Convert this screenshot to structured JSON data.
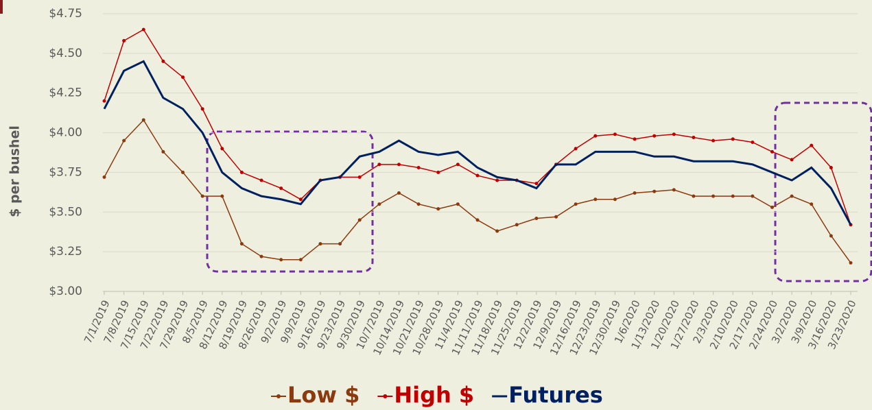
{
  "chart_data": {
    "type": "line",
    "y_label": "$ per bushel",
    "categories": [
      "7/1/2019",
      "7/8/2019",
      "7/15/2019",
      "7/22/2019",
      "7/29/2019",
      "8/5/2019",
      "8/12/2019",
      "8/19/2019",
      "8/26/2019",
      "9/2/2019",
      "9/9/2019",
      "9/16/2019",
      "9/23/2019",
      "9/30/2019",
      "10/7/2019",
      "10/14/2019",
      "10/21/2019",
      "10/28/2019",
      "11/4/2019",
      "11/11/2019",
      "11/18/2019",
      "11/25/2019",
      "12/2/2019",
      "12/9/2019",
      "12/16/2019",
      "12/23/2019",
      "12/30/2019",
      "1/6/2020",
      "1/13/2020",
      "1/20/2020",
      "1/27/2020",
      "2/3/2020",
      "2/10/2020",
      "2/17/2020",
      "2/24/2020",
      "3/2/2020",
      "3/9/2020",
      "3/16/2020",
      "3/23/2020"
    ],
    "series": [
      {
        "name": "Low $",
        "color": "#8b3a0f",
        "marker": true,
        "values": [
          3.72,
          3.95,
          4.08,
          3.88,
          3.75,
          3.6,
          3.6,
          3.3,
          3.22,
          3.2,
          3.2,
          3.3,
          3.3,
          3.45,
          3.55,
          3.62,
          3.55,
          3.52,
          3.55,
          3.45,
          3.38,
          3.42,
          3.46,
          3.47,
          3.55,
          3.58,
          3.58,
          3.62,
          3.63,
          3.64,
          3.6,
          3.6,
          3.6,
          3.6,
          3.53,
          3.6,
          3.55,
          3.35,
          3.18
        ]
      },
      {
        "name": "High $",
        "color": "#c00000",
        "marker": true,
        "values": [
          4.2,
          4.58,
          4.65,
          4.45,
          4.35,
          4.15,
          3.9,
          3.75,
          3.7,
          3.65,
          3.58,
          3.7,
          3.72,
          3.72,
          3.8,
          3.8,
          3.78,
          3.75,
          3.8,
          3.73,
          3.7,
          3.7,
          3.68,
          3.8,
          3.9,
          3.98,
          3.99,
          3.96,
          3.98,
          3.99,
          3.97,
          3.95,
          3.96,
          3.94,
          3.88,
          3.83,
          3.92,
          3.78,
          3.42
        ]
      },
      {
        "name": "Futures",
        "color": "#002060",
        "marker": false,
        "values": [
          4.15,
          4.39,
          4.45,
          4.22,
          4.15,
          4.0,
          3.75,
          3.65,
          3.6,
          3.58,
          3.55,
          3.7,
          3.72,
          3.85,
          3.88,
          3.95,
          3.88,
          3.86,
          3.88,
          3.78,
          3.72,
          3.7,
          3.65,
          3.8,
          3.8,
          3.88,
          3.88,
          3.88,
          3.85,
          3.85,
          3.82,
          3.82,
          3.82,
          3.8,
          3.75,
          3.7,
          3.78,
          3.65,
          3.42
        ]
      }
    ],
    "ylim": [
      3.0,
      4.75
    ],
    "yticks": [
      {
        "value": 3.0,
        "label": "$3.00"
      },
      {
        "value": 3.25,
        "label": "$3.25"
      },
      {
        "value": 3.5,
        "label": "$3.50"
      },
      {
        "value": 3.75,
        "label": "$3.75"
      },
      {
        "value": 4.0,
        "label": "$4.00"
      },
      {
        "value": 4.25,
        "label": "$4.25"
      },
      {
        "value": 4.5,
        "label": "$4.50"
      },
      {
        "value": 4.75,
        "label": "$4.75"
      }
    ],
    "grid": true,
    "legend": "bottom"
  }
}
